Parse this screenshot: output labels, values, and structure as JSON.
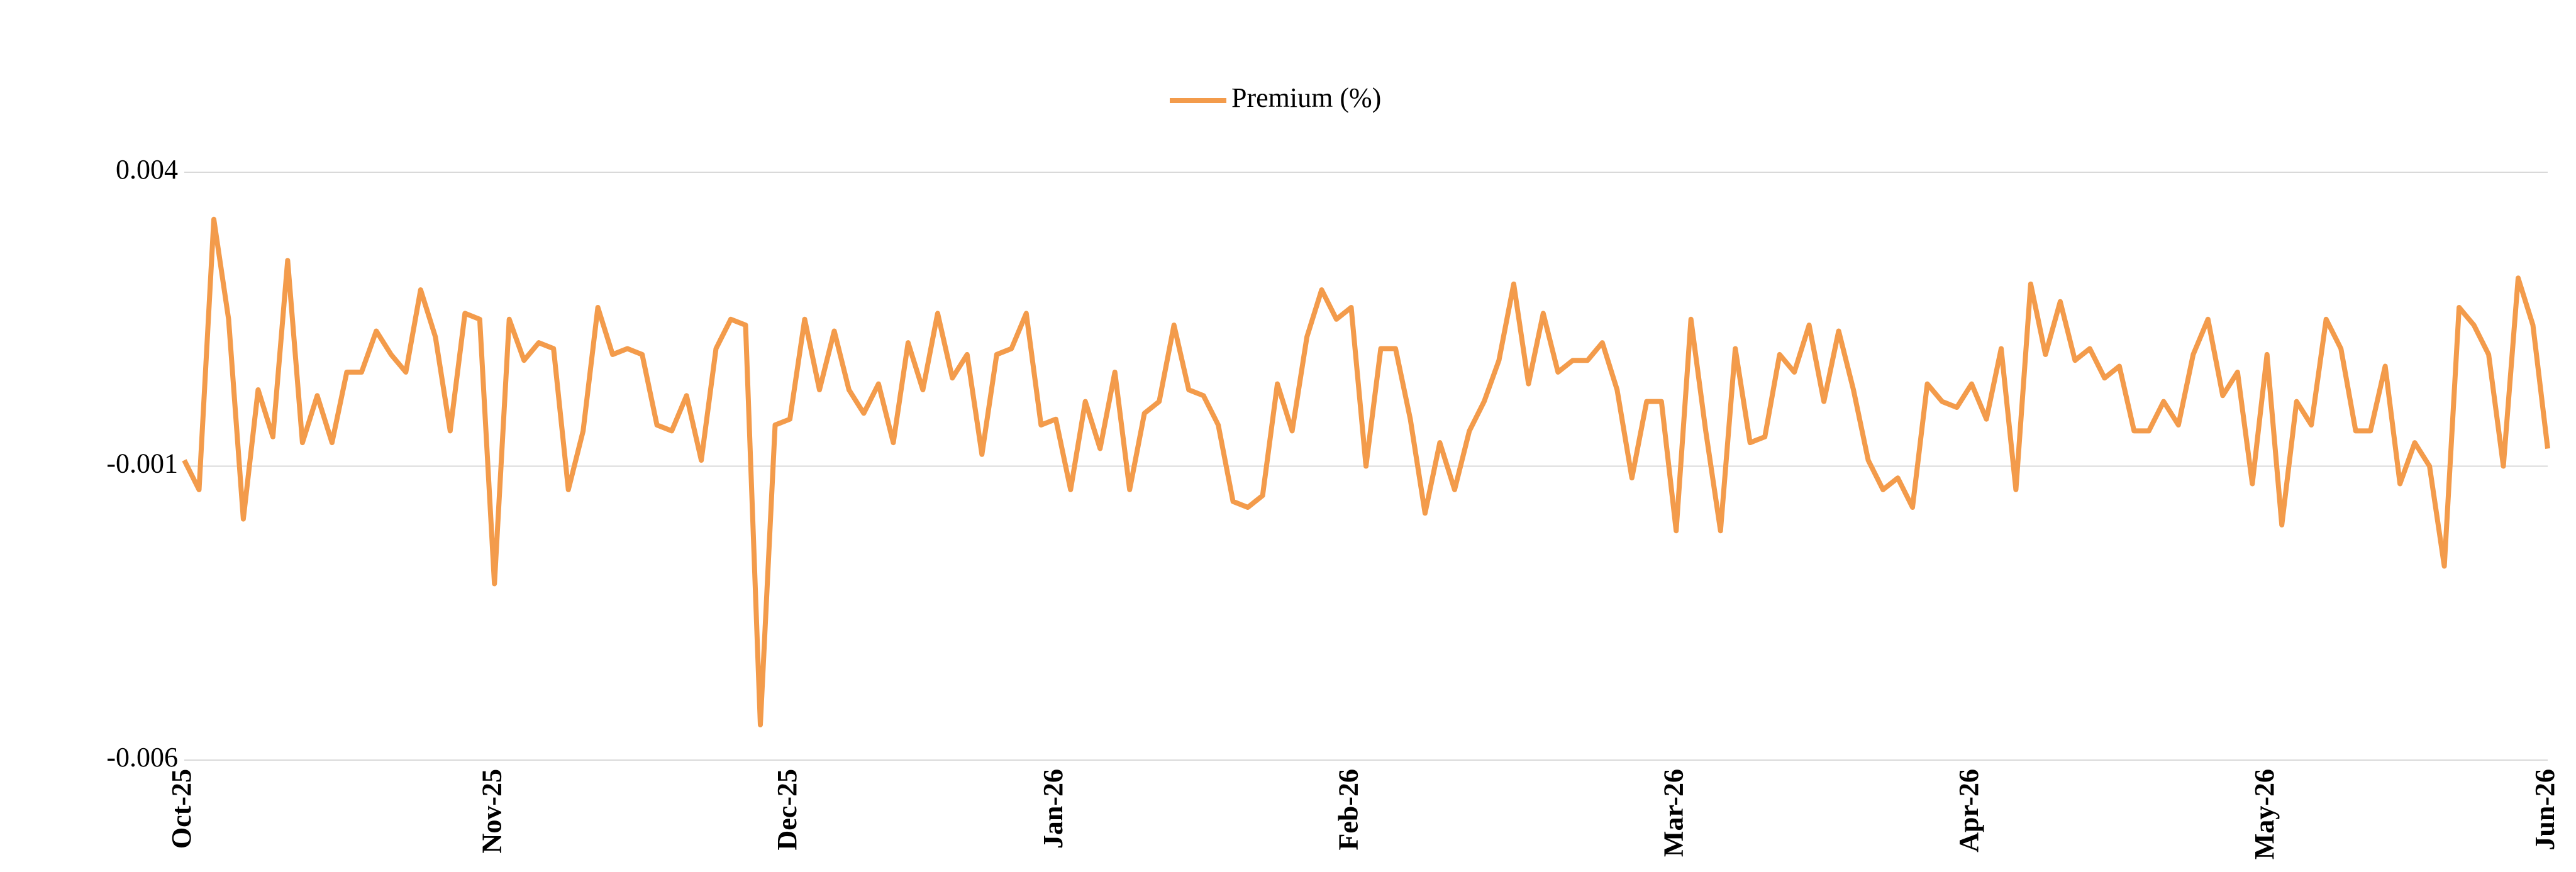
{
  "chart_data": {
    "type": "line",
    "categories": [
      "Oct-25",
      null,
      null,
      null,
      null,
      null,
      null,
      null,
      null,
      null,
      null,
      null,
      null,
      null,
      null,
      null,
      null,
      null,
      null,
      null,
      null,
      "Nov-25",
      null,
      null,
      null,
      null,
      null,
      null,
      null,
      null,
      null,
      null,
      null,
      null,
      null,
      null,
      null,
      null,
      null,
      null,
      null,
      "Dec-25",
      null,
      null,
      null,
      null,
      null,
      null,
      null,
      null,
      null,
      null,
      null,
      null,
      null,
      null,
      null,
      null,
      null,
      "Jan-26",
      null,
      null,
      null,
      null,
      null,
      null,
      null,
      null,
      null,
      null,
      null,
      null,
      null,
      null,
      null,
      null,
      null,
      null,
      null,
      "Feb-26",
      null,
      null,
      null,
      null,
      null,
      null,
      null,
      null,
      null,
      null,
      null,
      null,
      null,
      null,
      null,
      null,
      null,
      null,
      null,
      null,
      null,
      "Mar-26",
      null,
      null,
      null,
      null,
      null,
      null,
      null,
      null,
      null,
      null,
      null,
      null,
      null,
      null,
      null,
      null,
      null,
      null,
      null,
      "Apr-26",
      null,
      null,
      null,
      null,
      null,
      null,
      null,
      null,
      null,
      null,
      null,
      null,
      null,
      null,
      null,
      null,
      null,
      null,
      null,
      "May-26",
      null,
      null,
      null,
      null,
      null,
      null,
      null,
      null,
      null,
      null,
      null,
      null,
      null,
      null,
      null,
      null,
      null,
      null,
      "Jun-26"
    ],
    "series": [
      {
        "name": "Premium (%)",
        "color": "#f39b4b",
        "values": [
          -0.0009,
          -0.0014,
          0.0032,
          0.0015,
          -0.0019,
          0.0003,
          -0.0005,
          0.0025,
          -0.0006,
          0.0002,
          -0.0006,
          0.0006,
          0.0006,
          0.0013,
          0.0009,
          0.0006,
          0.002,
          0.0012,
          -0.0004,
          0.0016,
          0.0015,
          -0.003,
          0.0015,
          0.0008,
          0.0011,
          0.001,
          -0.0014,
          -0.0004,
          0.0017,
          0.0009,
          0.001,
          0.0009,
          -0.0003,
          -0.0004,
          0.0002,
          -0.0009,
          0.001,
          0.0015,
          0.0014,
          -0.0054,
          -0.0003,
          -0.0002,
          0.0015,
          0.0003,
          0.0013,
          0.0003,
          -0.0001,
          0.0004,
          -0.0006,
          0.0011,
          0.0003,
          0.0016,
          0.0005,
          0.0009,
          -0.0008,
          0.0009,
          0.001,
          0.0016,
          -0.0003,
          -0.0002,
          -0.0014,
          0.0001,
          -0.0007,
          0.0006,
          -0.0014,
          -0.0001,
          0.0001,
          0.0014,
          0.0003,
          0.0002,
          -0.0003,
          -0.0016,
          -0.0017,
          -0.0015,
          0.0004,
          -0.0004,
          0.0012,
          0.002,
          0.0015,
          0.0017,
          -0.001,
          0.001,
          0.001,
          -0.0002,
          -0.0018,
          -0.0006,
          -0.0014,
          -0.0004,
          0.0001,
          0.0008,
          0.0021,
          0.0004,
          0.0016,
          0.0006,
          0.0008,
          0.0008,
          0.0011,
          0.0003,
          -0.0012,
          0.0001,
          0.0001,
          -0.0021,
          0.0015,
          -0.0004,
          -0.0021,
          0.001,
          -0.0006,
          -0.0005,
          0.0009,
          0.0006,
          0.0014,
          0.0001,
          0.0013,
          0.0003,
          -0.0009,
          -0.0014,
          -0.0012,
          -0.0017,
          0.0004,
          0.0001,
          0,
          0.0004,
          -0.0002,
          0.001,
          -0.0014,
          0.0021,
          0.0009,
          0.0018,
          0.0008,
          0.001,
          0.0005,
          0.0007,
          -0.0004,
          -0.0004,
          0.0001,
          -0.0003,
          0.0009,
          0.0015,
          0.0002,
          0.0006,
          -0.0013,
          0.0009,
          -0.002,
          0.0001,
          -0.0003,
          0.0015,
          0.001,
          -0.0004,
          -0.0004,
          0.0007,
          -0.0013,
          -0.0006,
          -0.001,
          -0.0027,
          0.0017,
          0.0014,
          0.0009,
          -0.001,
          0.0022,
          0.0014,
          -0.0007
        ]
      }
    ],
    "ylim": [
      -0.006,
      0.004
    ],
    "yticks": [
      -0.006,
      -0.001,
      0.004
    ],
    "grid": true,
    "legend": "top"
  }
}
